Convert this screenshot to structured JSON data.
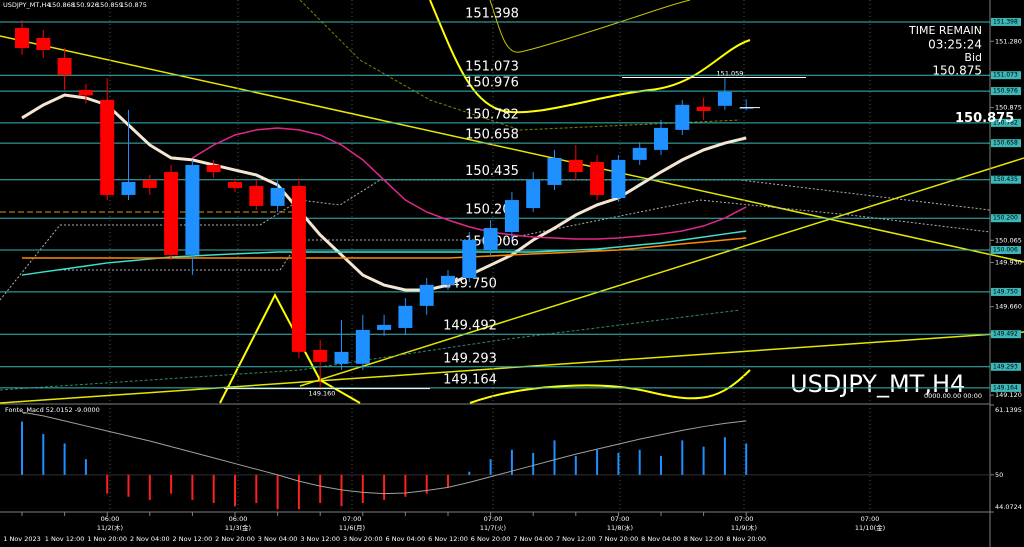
{
  "chart_data": [
    {
      "type": "candlestick",
      "title": "USDJPY_MT,H4",
      "watermark": "USDJPY_MT,H4",
      "marker_text": "0000.00.00 00:00",
      "categories": [
        "1 Nov 2023",
        null,
        "1 Nov 12:00",
        null,
        "1 Nov 20:00",
        null,
        "2 Nov 04:00",
        null,
        "2 Nov 12:00",
        null,
        "2 Nov 20:00",
        null,
        "3 Nov 04:00",
        null,
        "3 Nov 12:00",
        null,
        "3 Nov 20:00",
        null,
        "6 Nov 04:00",
        null,
        "6 Nov 12:00",
        null,
        "6 Nov 20:00",
        null,
        "7 Nov 04:00",
        null,
        "7 Nov 12:00",
        null,
        "7 Nov 20:00",
        null,
        "8 Nov 04:00",
        null,
        "8 Nov 12:00",
        null,
        "8 Nov 20:00"
      ],
      "open": [
        151.361,
        151.3,
        151.178,
        150.983,
        150.922,
        150.342,
        150.433,
        150.482,
        149.976,
        150.525,
        150.421,
        150.397,
        150.275,
        150.397,
        149.396,
        149.311,
        149.311,
        149.518,
        149.53,
        149.665,
        149.793,
        149.835,
        150.006,
        150.116,
        150.262,
        150.403,
        150.556,
        150.543,
        150.323,
        150.556,
        150.617,
        150.739,
        150.88,
        150.886,
        150.868
      ],
      "high": [
        151.41,
        151.349,
        151.239,
        151.02,
        151.056,
        150.861,
        150.464,
        150.525,
        150.556,
        150.556,
        150.445,
        150.433,
        150.433,
        150.445,
        149.457,
        149.579,
        149.61,
        149.61,
        149.713,
        149.835,
        149.884,
        150.116,
        150.189,
        150.36,
        150.482,
        150.617,
        150.647,
        150.586,
        150.586,
        150.664,
        150.8,
        150.922,
        150.935,
        151.059,
        150.926
      ],
      "low": [
        151.197,
        151.178,
        150.983,
        150.9,
        150.311,
        150.311,
        150.342,
        149.945,
        149.854,
        150.445,
        150.36,
        150.25,
        150.238,
        149.347,
        149.16,
        149.274,
        149.274,
        149.482,
        149.488,
        149.61,
        149.762,
        149.811,
        149.976,
        150.067,
        150.238,
        150.372,
        150.433,
        150.311,
        150.3,
        150.525,
        150.586,
        150.708,
        150.8,
        150.861,
        150.859
      ],
      "close": [
        151.239,
        151.227,
        151.074,
        150.95,
        150.342,
        150.421,
        150.385,
        149.976,
        150.525,
        150.482,
        150.385,
        150.275,
        150.385,
        149.384,
        149.323,
        149.384,
        149.518,
        149.549,
        149.665,
        149.793,
        149.848,
        150.067,
        150.14,
        150.311,
        150.433,
        150.568,
        150.482,
        150.342,
        150.556,
        150.629,
        150.751,
        150.892,
        150.855,
        150.971,
        150.875
      ],
      "low_label": "149.160",
      "up_color": "#1e90ff",
      "down_color": "#ff0000",
      "series": [
        {
          "color": "#f5e6d3",
          "values": [
            150.812,
            150.891,
            150.952,
            150.934,
            150.891,
            150.769,
            150.647,
            150.568,
            150.556,
            150.525,
            150.494,
            150.464,
            150.403,
            150.25,
            150.098,
            149.976,
            149.853,
            149.792,
            149.762,
            149.762,
            149.792,
            149.853,
            149.914,
            149.976,
            150.067,
            150.14,
            150.22,
            150.281,
            150.324,
            150.403,
            150.482,
            150.556,
            150.617,
            150.659,
            150.69
          ]
        },
        {
          "color": "#e0288c",
          "values": [
            null,
            null,
            null,
            null,
            null,
            null,
            null,
            null,
            150.568,
            150.647,
            150.708,
            150.739,
            150.751,
            150.739,
            150.708,
            150.647,
            150.556,
            150.433,
            150.311,
            150.238,
            150.189,
            150.147,
            150.116,
            150.098,
            150.085,
            150.079,
            150.073,
            150.073,
            150.079,
            150.091,
            150.104,
            150.122,
            150.153,
            150.201,
            150.269
          ]
        },
        {
          "color": "#40e0d0",
          "values": [
            149.853,
            149.872,
            149.89,
            149.908,
            149.927,
            149.939,
            149.951,
            149.963,
            149.969,
            149.976,
            149.982,
            149.988,
            149.994,
            149.994,
            149.994,
            149.994,
            149.994,
            149.994,
            149.994,
            149.994,
            149.994,
            149.994,
            149.994,
            149.994,
            149.994,
            150.0,
            150.006,
            150.012,
            150.024,
            150.037,
            150.049,
            150.067,
            150.085,
            150.104,
            150.122
          ]
        },
        {
          "color": "#ff8c00",
          "values": [
            149.957,
            149.957,
            149.957,
            149.957,
            149.957,
            149.957,
            149.957,
            149.957,
            149.957,
            149.957,
            149.957,
            149.957,
            149.957,
            149.957,
            149.957,
            149.957,
            149.957,
            149.957,
            149.957,
            149.957,
            149.957,
            149.963,
            149.969,
            149.976,
            149.982,
            149.988,
            149.994,
            150.0,
            150.006,
            150.018,
            150.031,
            150.043,
            150.055,
            150.067,
            150.079
          ]
        }
      ],
      "levels": [
        151.398,
        151.073,
        150.976,
        150.782,
        150.658,
        150.435,
        {
          "value": 150.2,
          "label": "150.200"
        },
        150.006,
        {
          "value": 149.75,
          "label": "149.750"
        },
        149.492,
        149.293,
        149.164
      ],
      "level_color": "#3cb8b8",
      "ylim": [
        149.072,
        151.532
      ],
      "yticks": [
        {
          "value": 151.28,
          "label": "151.280"
        },
        150.875,
        150.065,
        {
          "value": 149.93,
          "label": "149.930"
        },
        {
          "value": 149.66,
          "label": "149.660"
        },
        {
          "value": 149.12,
          "label": "149.120"
        }
      ],
      "jst_axis": [
        {
          "time": "06:00",
          "date": "11/2(木)"
        },
        {
          "time": "06:00",
          "date": "11/3(金)"
        },
        {
          "time": "07:00",
          "date": "11/6(月)"
        },
        {
          "time": "07:00",
          "date": "11/7(火)"
        },
        {
          "time": "07:00",
          "date": "11/8(水)"
        },
        {
          "time": "07:00",
          "date": "11/9(木)"
        },
        {
          "time": "07:00",
          "date": "11/10(金)"
        }
      ]
    },
    {
      "type": "histogram",
      "title": "Fonte_Macd 52.0152 -9.0000",
      "baseline": 50,
      "values": [
        58.5,
        56.5,
        55.0,
        52.5,
        47.0,
        46.5,
        46.0,
        47.0,
        46.0,
        45.5,
        45.0,
        45.5,
        44.5,
        44.5,
        45.5,
        45.0,
        45.5,
        46.0,
        46.5,
        47.0,
        48.0,
        50.5,
        52.5,
        54.0,
        53.5,
        55.5,
        53.0,
        54.0,
        53.5,
        54.0,
        53.0,
        55.5,
        54.5,
        56.0,
        55.0
      ],
      "up_color": "#1e90ff",
      "down_color": "#ff2020",
      "signal": {
        "color": "#a0a0a0",
        "values": [
          60.0,
          59.4,
          58.6,
          57.8,
          57.0,
          56.2,
          55.4,
          54.5,
          53.6,
          52.7,
          51.8,
          50.9,
          50.0,
          49.0,
          48.2,
          47.6,
          47.2,
          47.0,
          47.1,
          47.5,
          48.0,
          48.8,
          49.7,
          50.6,
          51.5,
          52.4,
          53.3,
          54.1,
          54.9,
          55.7,
          56.4,
          57.1,
          57.7,
          58.2,
          58.6
        ]
      },
      "ylim": [
        44.0724,
        61.1395
      ],
      "yticks": [
        61.1395,
        50,
        44.0724
      ]
    }
  ],
  "info_panel": {
    "time_remain_label": "TIME REMAIN",
    "time_remain": "03:25:24",
    "bid_label": "Bid"
  }
}
